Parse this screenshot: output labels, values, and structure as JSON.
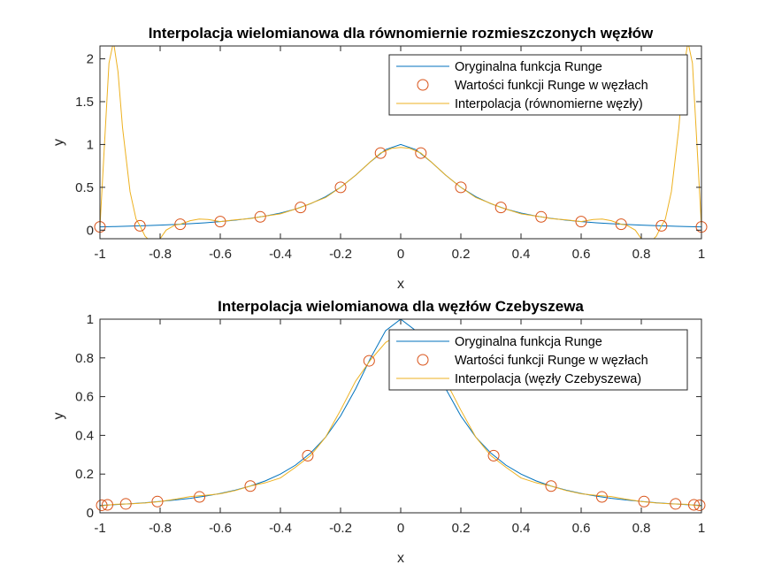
{
  "chart_data": [
    {
      "type": "line",
      "title": "Interpolacja wielomianowa dla równomiernie rozmieszczonych węzłów",
      "xlabel": "x",
      "ylabel": "y",
      "xlim": [
        -1,
        1
      ],
      "ylim": [
        -0.1,
        2.15
      ],
      "xticks": [
        -1,
        -0.8,
        -0.6,
        -0.4,
        -0.2,
        0,
        0.2,
        0.4,
        0.6,
        0.8,
        1
      ],
      "xtick_labels": [
        "-1",
        "-0.8",
        "-0.6",
        "-0.4",
        "-0.2",
        "0",
        "0.2",
        "0.4",
        "0.6",
        "0.8",
        "1"
      ],
      "yticks": [
        0,
        0.5,
        1,
        1.5,
        2
      ],
      "ytick_labels": [
        "0",
        "0.5",
        "1",
        "1.5",
        "2"
      ],
      "legend_position": "top-right",
      "series": [
        {
          "name": "Oryginalna funkcja Runge",
          "color": "#0072BD",
          "style": "line",
          "x": [
            -1,
            -0.95,
            -0.9,
            -0.85,
            -0.8,
            -0.75,
            -0.7,
            -0.65,
            -0.6,
            -0.55,
            -0.5,
            -0.45,
            -0.4,
            -0.35,
            -0.3,
            -0.25,
            -0.2,
            -0.15,
            -0.1,
            -0.05,
            0,
            0.05,
            0.1,
            0.15,
            0.2,
            0.25,
            0.3,
            0.35,
            0.4,
            0.45,
            0.5,
            0.55,
            0.6,
            0.65,
            0.7,
            0.75,
            0.8,
            0.85,
            0.9,
            0.95,
            1
          ],
          "y": [
            0.038,
            0.042,
            0.047,
            0.052,
            0.059,
            0.066,
            0.075,
            0.086,
            0.1,
            0.117,
            0.138,
            0.165,
            0.2,
            0.246,
            0.308,
            0.39,
            0.5,
            0.64,
            0.8,
            0.941,
            1,
            0.941,
            0.8,
            0.64,
            0.5,
            0.39,
            0.308,
            0.246,
            0.2,
            0.165,
            0.138,
            0.117,
            0.1,
            0.086,
            0.075,
            0.066,
            0.059,
            0.052,
            0.047,
            0.042,
            0.038
          ]
        },
        {
          "name": "Wartości funkcji Runge w węzłach",
          "color": "#D95319",
          "style": "marker",
          "x": [
            -1,
            -0.867,
            -0.733,
            -0.6,
            -0.467,
            -0.333,
            -0.2,
            -0.067,
            0.067,
            0.2,
            0.333,
            0.467,
            0.6,
            0.733,
            0.867,
            1
          ],
          "y": [
            0.038,
            0.051,
            0.069,
            0.1,
            0.155,
            0.265,
            0.5,
            0.9,
            0.9,
            0.5,
            0.265,
            0.155,
            0.1,
            0.069,
            0.051,
            0.038
          ]
        },
        {
          "name": "Interpolacja (równomierne węzły)",
          "color": "#EDB120",
          "style": "line",
          "x": [
            -1,
            -0.985,
            -0.97,
            -0.955,
            -0.94,
            -0.925,
            -0.9,
            -0.88,
            -0.867,
            -0.85,
            -0.83,
            -0.8,
            -0.78,
            -0.75,
            -0.733,
            -0.7,
            -0.67,
            -0.64,
            -0.6,
            -0.55,
            -0.5,
            -0.467,
            -0.4,
            -0.333,
            -0.25,
            -0.2,
            -0.15,
            -0.1,
            -0.067,
            -0.03,
            0,
            0.03,
            0.067,
            0.1,
            0.15,
            0.2,
            0.25,
            0.333,
            0.4,
            0.467,
            0.5,
            0.55,
            0.6,
            0.64,
            0.67,
            0.7,
            0.733,
            0.75,
            0.78,
            0.8,
            0.83,
            0.85,
            0.867,
            0.88,
            0.9,
            0.925,
            0.94,
            0.955,
            0.97,
            0.985,
            1
          ],
          "y": [
            0.038,
            1.0,
            1.95,
            2.2,
            1.85,
            1.2,
            0.45,
            0.13,
            0.051,
            -0.07,
            -0.14,
            -0.1,
            0.0,
            0.06,
            0.069,
            0.11,
            0.13,
            0.125,
            0.1,
            0.12,
            0.135,
            0.155,
            0.19,
            0.265,
            0.38,
            0.5,
            0.64,
            0.8,
            0.9,
            0.955,
            0.965,
            0.955,
            0.9,
            0.8,
            0.64,
            0.5,
            0.38,
            0.265,
            0.19,
            0.155,
            0.135,
            0.12,
            0.1,
            0.125,
            0.13,
            0.11,
            0.069,
            0.06,
            0.0,
            -0.1,
            -0.14,
            -0.07,
            0.051,
            0.13,
            0.45,
            1.2,
            1.85,
            2.2,
            1.95,
            1.0,
            0.038
          ]
        }
      ]
    },
    {
      "type": "line",
      "title": "Interpolacja wielomianowa dla węzłów Czebyszewa",
      "xlabel": "x",
      "ylabel": "y",
      "xlim": [
        -1,
        1
      ],
      "ylim": [
        0,
        1
      ],
      "xticks": [
        -1,
        -0.8,
        -0.6,
        -0.4,
        -0.2,
        0,
        0.2,
        0.4,
        0.6,
        0.8,
        1
      ],
      "xtick_labels": [
        "-1",
        "-0.8",
        "-0.6",
        "-0.4",
        "-0.2",
        "0",
        "0.2",
        "0.4",
        "0.6",
        "0.8",
        "1"
      ],
      "yticks": [
        0,
        0.2,
        0.4,
        0.6,
        0.8,
        1
      ],
      "ytick_labels": [
        "0",
        "0.2",
        "0.4",
        "0.6",
        "0.8",
        "1"
      ],
      "legend_position": "top-right",
      "series": [
        {
          "name": "Oryginalna funkcja Runge",
          "color": "#0072BD",
          "style": "line",
          "x": [
            -1,
            -0.95,
            -0.9,
            -0.85,
            -0.8,
            -0.75,
            -0.7,
            -0.65,
            -0.6,
            -0.55,
            -0.5,
            -0.45,
            -0.4,
            -0.35,
            -0.3,
            -0.25,
            -0.2,
            -0.15,
            -0.1,
            -0.05,
            0,
            0.05,
            0.1,
            0.15,
            0.2,
            0.25,
            0.3,
            0.35,
            0.4,
            0.45,
            0.5,
            0.55,
            0.6,
            0.65,
            0.7,
            0.75,
            0.8,
            0.85,
            0.9,
            0.95,
            1
          ],
          "y": [
            0.038,
            0.042,
            0.047,
            0.052,
            0.059,
            0.066,
            0.075,
            0.086,
            0.1,
            0.117,
            0.138,
            0.165,
            0.2,
            0.246,
            0.308,
            0.39,
            0.5,
            0.64,
            0.8,
            0.941,
            1,
            0.941,
            0.8,
            0.64,
            0.5,
            0.39,
            0.308,
            0.246,
            0.2,
            0.165,
            0.138,
            0.117,
            0.1,
            0.086,
            0.075,
            0.066,
            0.059,
            0.052,
            0.047,
            0.042,
            0.038
          ]
        },
        {
          "name": "Wartości funkcji Runge w węzłach",
          "color": "#D95319",
          "style": "marker",
          "x": [
            -0.994,
            -0.975,
            -0.914,
            -0.809,
            -0.669,
            -0.5,
            -0.309,
            -0.105,
            0.309,
            0.5,
            0.669,
            0.809,
            0.914,
            0.975,
            0.994
          ],
          "y": [
            0.039,
            0.041,
            0.046,
            0.058,
            0.082,
            0.138,
            0.295,
            0.785,
            0.295,
            0.138,
            0.082,
            0.058,
            0.046,
            0.041,
            0.039
          ]
        },
        {
          "name": "Interpolacja (węzły Czebyszewa)",
          "color": "#EDB120",
          "style": "line",
          "x": [
            -1,
            -0.95,
            -0.9,
            -0.85,
            -0.8,
            -0.75,
            -0.7,
            -0.65,
            -0.6,
            -0.55,
            -0.5,
            -0.45,
            -0.4,
            -0.35,
            -0.3,
            -0.25,
            -0.2,
            -0.15,
            -0.1,
            -0.05,
            0,
            0.05,
            0.1,
            0.15,
            0.2,
            0.25,
            0.3,
            0.35,
            0.4,
            0.45,
            0.5,
            0.55,
            0.6,
            0.65,
            0.7,
            0.75,
            0.8,
            0.85,
            0.9,
            0.95,
            1
          ],
          "y": [
            0.035,
            0.044,
            0.046,
            0.051,
            0.058,
            0.07,
            0.084,
            0.09,
            0.098,
            0.115,
            0.138,
            0.155,
            0.18,
            0.235,
            0.295,
            0.39,
            0.53,
            0.68,
            0.79,
            0.88,
            0.925,
            0.88,
            0.79,
            0.68,
            0.53,
            0.39,
            0.295,
            0.235,
            0.18,
            0.155,
            0.138,
            0.115,
            0.098,
            0.09,
            0.084,
            0.07,
            0.058,
            0.051,
            0.046,
            0.044,
            0.035
          ]
        }
      ]
    }
  ]
}
